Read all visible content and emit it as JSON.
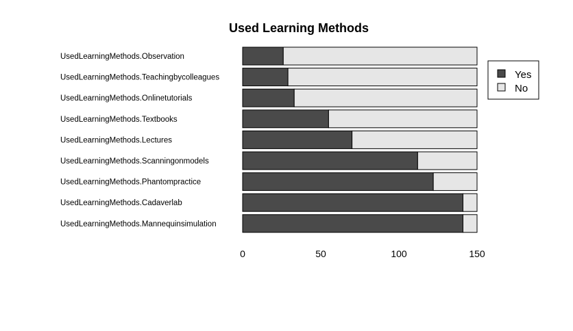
{
  "chart_data": {
    "type": "bar",
    "orientation": "horizontal",
    "stacked": true,
    "title": "Used Learning Methods",
    "categories": [
      "UsedLearningMethods.Observation",
      "UsedLearningMethods.Teachingbycolleagues",
      "UsedLearningMethods.Onlinetutorials",
      "UsedLearningMethods.Textbooks",
      "UsedLearningMethods.Lectures",
      "UsedLearningMethods.Scanningonmodels",
      "UsedLearningMethods.Phantompractice",
      "UsedLearningMethods.Cadaverlab",
      "UsedLearningMethods.Mannequinsimulation"
    ],
    "series": [
      {
        "name": "Yes",
        "color": "#4a4a4a",
        "values": [
          26,
          29,
          33,
          55,
          70,
          112,
          122,
          141,
          141
        ]
      },
      {
        "name": "No",
        "color": "#e6e6e6",
        "values": [
          124,
          121,
          117,
          95,
          80,
          38,
          28,
          9,
          9
        ]
      }
    ],
    "xlim": [
      0,
      150
    ],
    "xticks": [
      "0",
      "50",
      "100",
      "150"
    ],
    "xtick_values": [
      0,
      50,
      100,
      150
    ],
    "grid": false,
    "legend_position": "right"
  }
}
